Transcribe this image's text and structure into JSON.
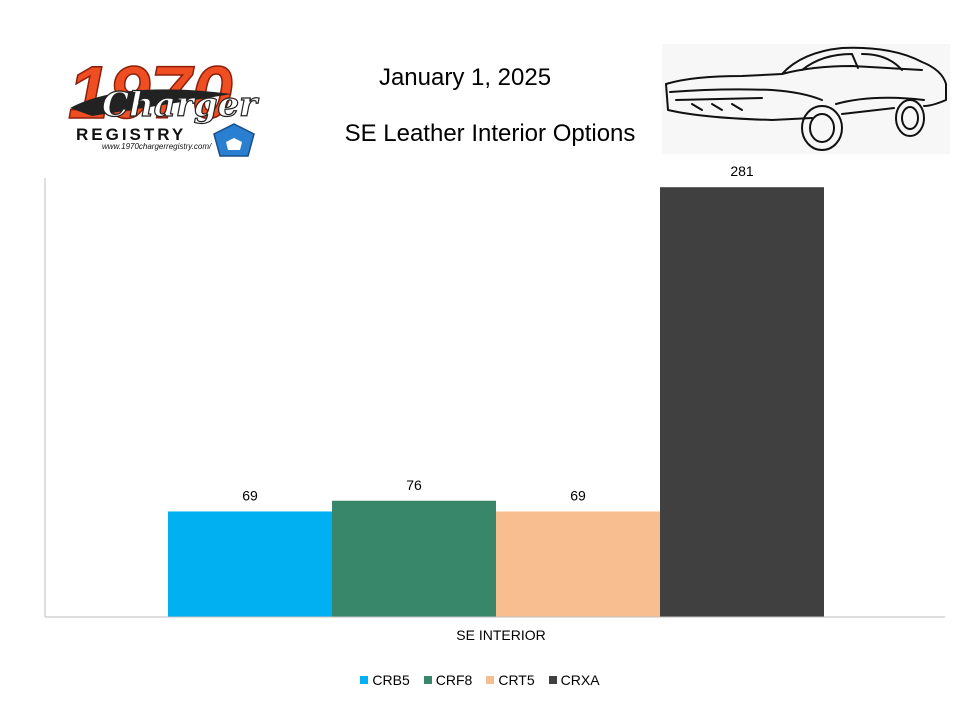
{
  "header": {
    "date": "January 1, 2025",
    "logo_text": "1970",
    "logo_script": "Charger",
    "logo_sub": "REGISTRY",
    "logo_url": "www.1970chargerregistry.com/"
  },
  "chart_data": {
    "type": "bar",
    "title": "SE Leather Interior Options",
    "categories": [
      "SE INTERIOR"
    ],
    "series": [
      {
        "name": "CRB5",
        "values": [
          69
        ],
        "color": "#00b0f0"
      },
      {
        "name": "CRF8",
        "values": [
          76
        ],
        "color": "#38876a"
      },
      {
        "name": "CRT5",
        "values": [
          69
        ],
        "color": "#f9be8f"
      },
      {
        "name": "CRXA",
        "values": [
          281
        ],
        "color": "#404040"
      }
    ],
    "xlabel": "",
    "ylabel": "",
    "ylim": [
      0,
      300
    ],
    "grid": false,
    "legend": "bottom",
    "data_labels": true
  }
}
